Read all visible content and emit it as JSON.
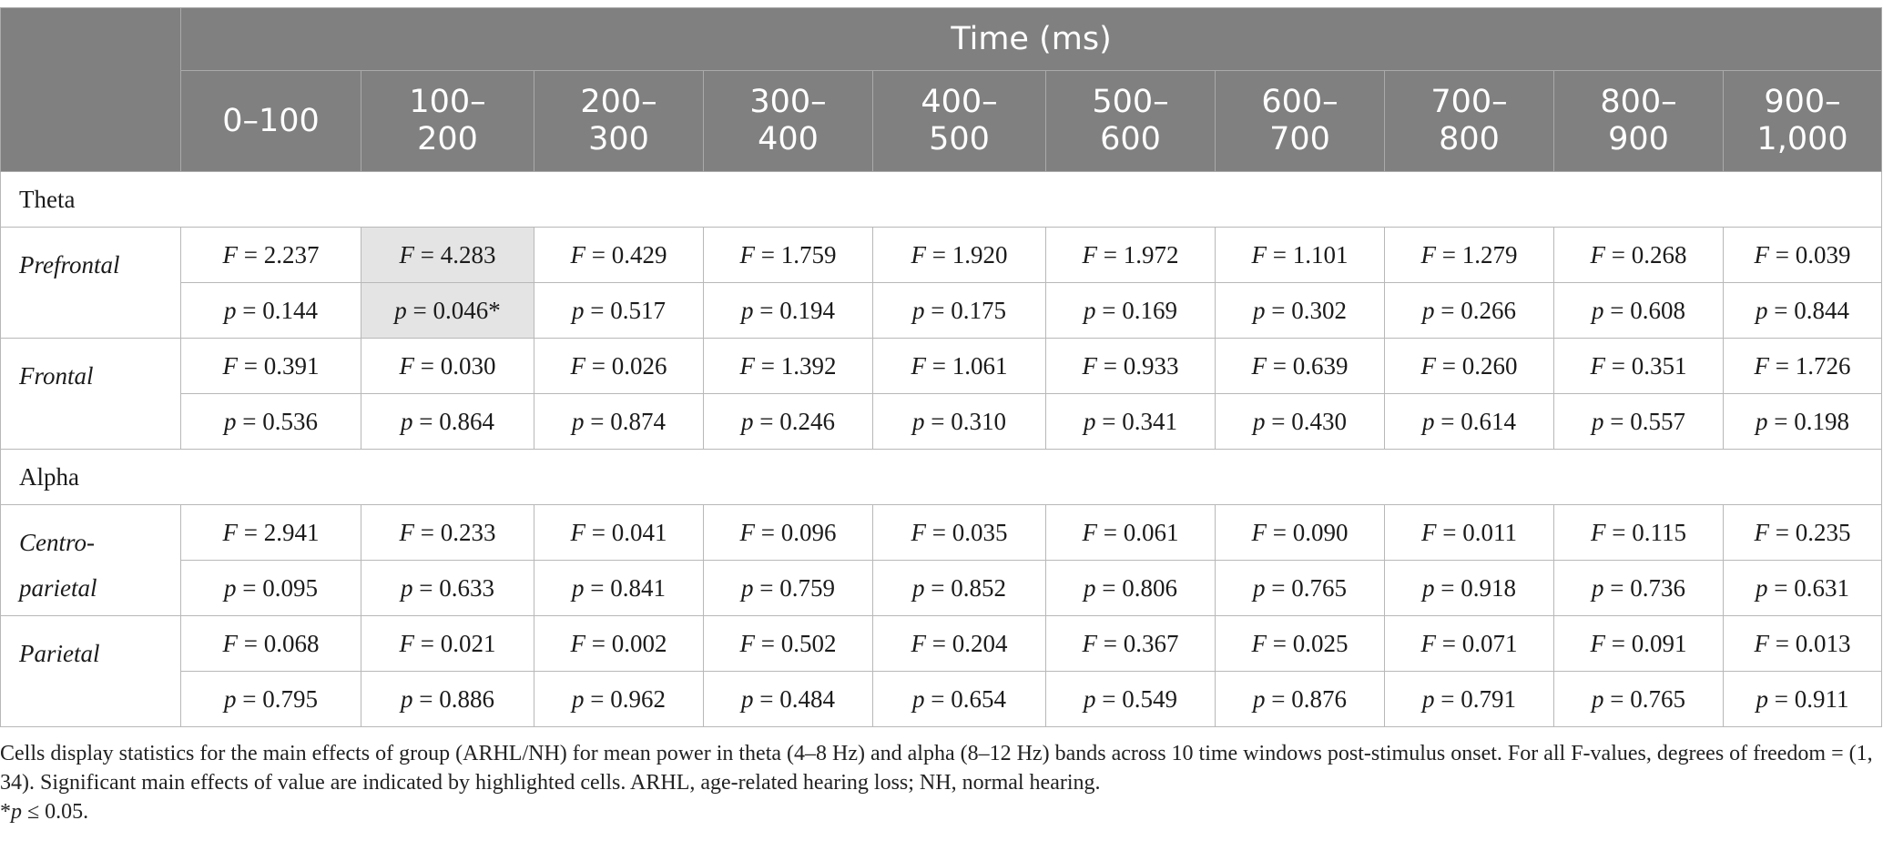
{
  "header": {
    "group_title": "Time (ms)",
    "windows": [
      [
        "0–100"
      ],
      [
        "100–",
        "200"
      ],
      [
        "200–",
        "300"
      ],
      [
        "300–",
        "400"
      ],
      [
        "400–",
        "500"
      ],
      [
        "500–",
        "600"
      ],
      [
        "600–",
        "700"
      ],
      [
        "700–",
        "800"
      ],
      [
        "800–",
        "900"
      ],
      [
        "900–",
        "1,000"
      ]
    ]
  },
  "bands": [
    {
      "name": "Theta",
      "regions": [
        {
          "name": [
            "Prefrontal"
          ],
          "F": [
            "2.237",
            "4.283",
            "0.429",
            "1.759",
            "1.920",
            "1.972",
            "1.101",
            "1.279",
            "0.268",
            "0.039"
          ],
          "p": [
            "0.144",
            "0.046*",
            "0.517",
            "0.194",
            "0.175",
            "0.169",
            "0.302",
            "0.266",
            "0.608",
            "0.844"
          ],
          "highlight": [
            false,
            true,
            false,
            false,
            false,
            false,
            false,
            false,
            false,
            false
          ]
        },
        {
          "name": [
            "Frontal"
          ],
          "F": [
            "0.391",
            "0.030",
            "0.026",
            "1.392",
            "1.061",
            "0.933",
            "0.639",
            "0.260",
            "0.351",
            "1.726"
          ],
          "p": [
            "0.536",
            "0.864",
            "0.874",
            "0.246",
            "0.310",
            "0.341",
            "0.430",
            "0.614",
            "0.557",
            "0.198"
          ],
          "highlight": [
            false,
            false,
            false,
            false,
            false,
            false,
            false,
            false,
            false,
            false
          ]
        }
      ]
    },
    {
      "name": "Alpha",
      "regions": [
        {
          "name": [
            "Centro-",
            "parietal"
          ],
          "F": [
            "2.941",
            "0.233",
            "0.041",
            "0.096",
            "0.035",
            "0.061",
            "0.090",
            "0.011",
            "0.115",
            "0.235"
          ],
          "p": [
            "0.095",
            "0.633",
            "0.841",
            "0.759",
            "0.852",
            "0.806",
            "0.765",
            "0.918",
            "0.736",
            "0.631"
          ],
          "highlight": [
            false,
            false,
            false,
            false,
            false,
            false,
            false,
            false,
            false,
            false
          ]
        },
        {
          "name": [
            "Parietal"
          ],
          "F": [
            "0.068",
            "0.021",
            "0.002",
            "0.502",
            "0.204",
            "0.367",
            "0.025",
            "0.071",
            "0.091",
            "0.013"
          ],
          "p": [
            "0.795",
            "0.886",
            "0.962",
            "0.484",
            "0.654",
            "0.549",
            "0.876",
            "0.791",
            "0.765",
            "0.911"
          ],
          "highlight": [
            false,
            false,
            false,
            false,
            false,
            false,
            false,
            false,
            false,
            false
          ]
        }
      ]
    }
  ],
  "labels": {
    "F": "F",
    "p": "p",
    "eq": " = "
  },
  "footnote": {
    "caption": "Cells display statistics for the main effects of group (ARHL/NH) for mean power in theta (4–8 Hz) and alpha (8–12 Hz) bands across 10 time windows post-stimulus onset. For all F-values, degrees of freedom = (1, 34). Significant main effects of value are indicated by highlighted cells. ARHL, age-related hearing loss; NH, normal hearing.",
    "sig_prefix": "*",
    "sig_symbol": "p",
    "sig_rest": " ≤ 0.05."
  },
  "colors": {
    "header_bg": "#7f807f",
    "highlight_bg": "#e4e4e4",
    "border": "#b8b8b8"
  }
}
